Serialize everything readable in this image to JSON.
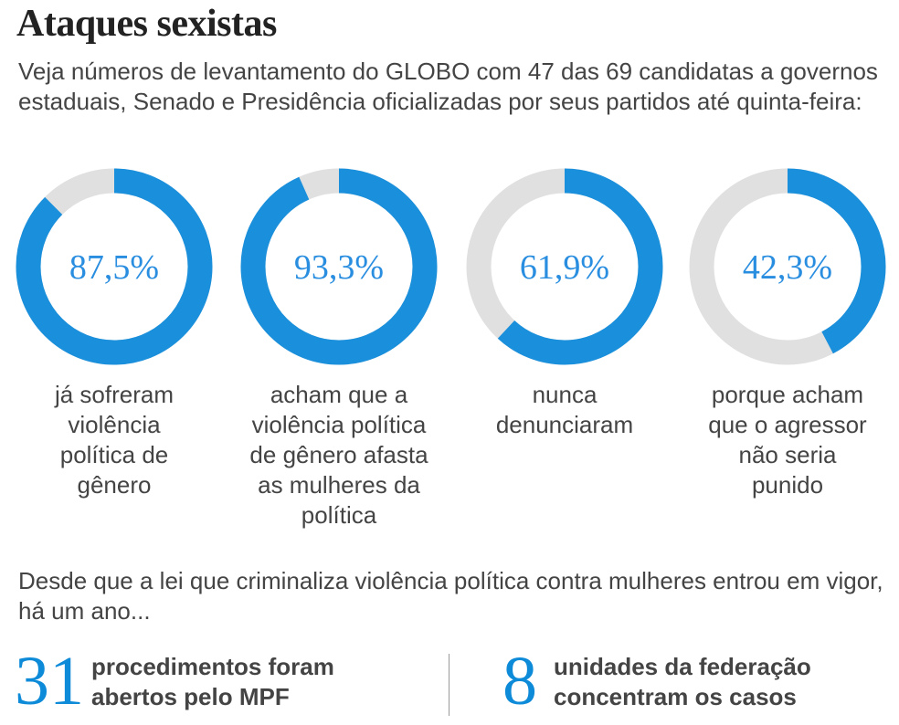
{
  "title": "Ataques sexistas",
  "subtitle": "Veja números de levantamento do GLOBO com 47 das 69 candidatas a governos estaduais, Senado e Presidência oficializadas por seus partidos até quinta-feira:",
  "chart_data": {
    "type": "pie",
    "subtype": "donut",
    "colors": {
      "filled": "#1a8fdb",
      "remainder": "#e0e0e0",
      "label": "#2a8ee0"
    },
    "series": [
      {
        "value": 87.5,
        "value_label": "87,5%",
        "caption_lines": [
          "já sofreram",
          "violência",
          "política de",
          "gênero"
        ]
      },
      {
        "value": 93.3,
        "value_label": "93,3%",
        "caption_lines": [
          "acham que a",
          "violência política",
          "de gênero afasta",
          "as mulheres da",
          "política"
        ]
      },
      {
        "value": 61.9,
        "value_label": "61,9%",
        "caption_lines": [
          "nunca",
          "denunciaram"
        ]
      },
      {
        "value": 42.3,
        "value_label": "42,3%",
        "caption_lines": [
          "porque acham",
          "que o agressor",
          "não seria",
          "punido"
        ]
      }
    ]
  },
  "intro": "Desde que a lei que criminaliza violência política contra mulheres entrou em vigor, há um ano...",
  "stats": [
    {
      "number": "31",
      "text_lines": [
        "procedimentos foram",
        "abertos pelo MPF"
      ]
    },
    {
      "number": "8",
      "text_lines": [
        "unidades da federação",
        "concentram os casos"
      ]
    }
  ]
}
